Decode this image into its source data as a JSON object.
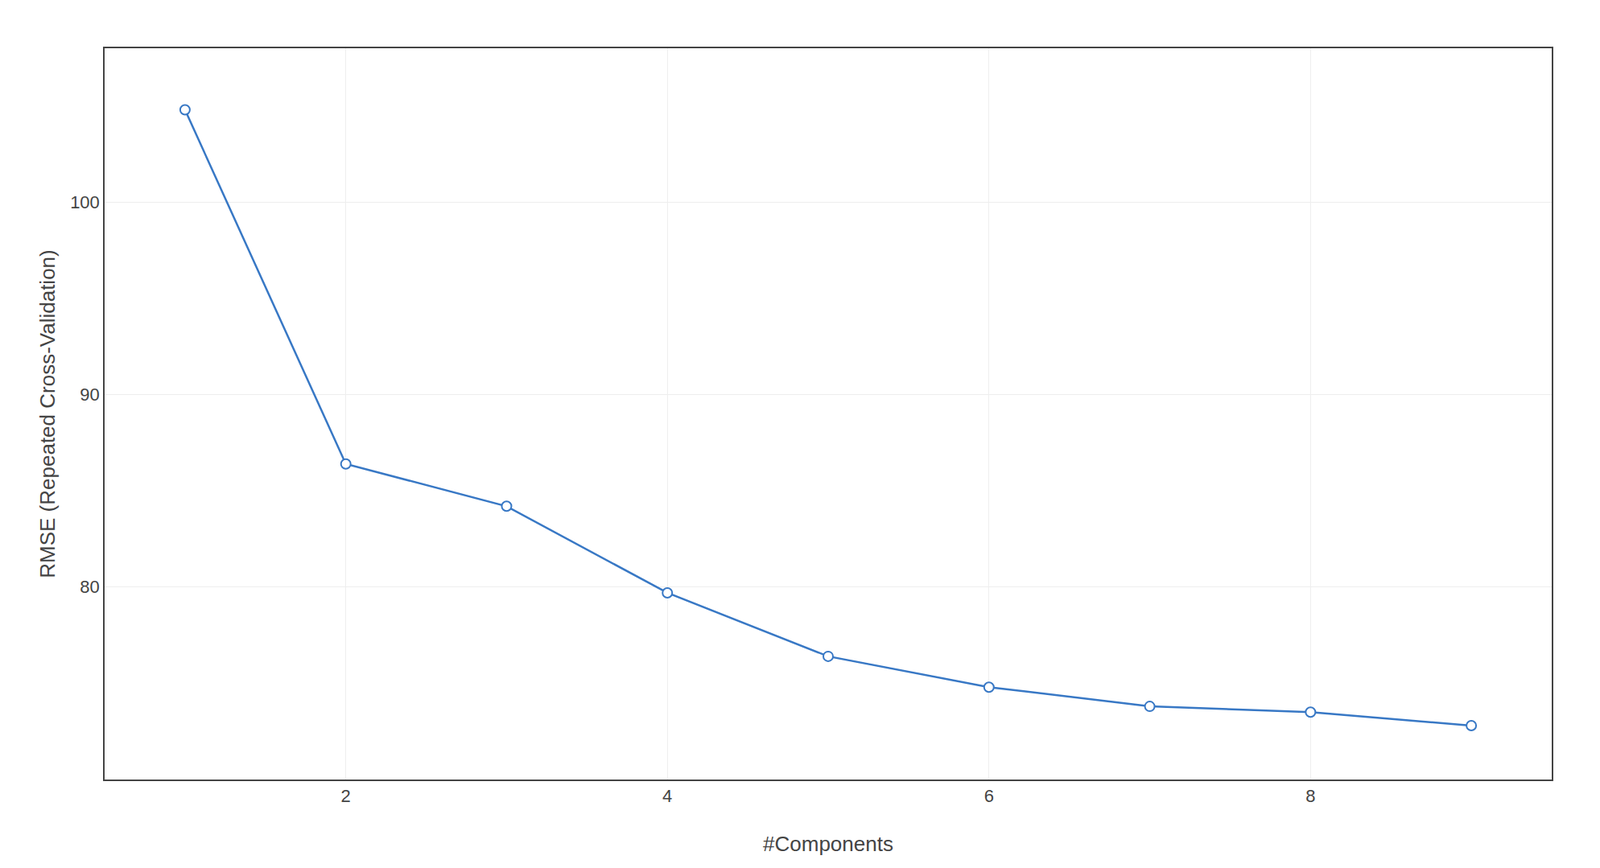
{
  "chart_data": {
    "type": "line",
    "x": [
      1,
      2,
      3,
      4,
      5,
      6,
      7,
      8,
      9
    ],
    "values": [
      104.8,
      86.4,
      84.2,
      79.7,
      76.4,
      74.8,
      73.8,
      73.5,
      72.8
    ],
    "color": "#3878c5",
    "marker": "circle",
    "xlabel": "#Components",
    "ylabel": "RMSE (Repeated Cross-Validation)",
    "xlim": [
      0.5,
      9.5
    ],
    "ylim": [
      70,
      108
    ],
    "xticks": [
      2,
      4,
      6,
      8
    ],
    "yticks": [
      80,
      90,
      100
    ],
    "grid": true
  }
}
